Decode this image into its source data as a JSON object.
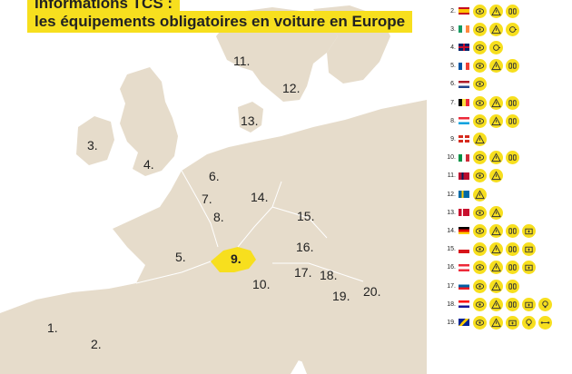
{
  "title": {
    "line1": "Informations TCS :",
    "line2": "les équipements obligatoires en voiture en Europe"
  },
  "map_labels": [
    {
      "id": "1",
      "text": "1."
    },
    {
      "id": "2",
      "text": "2."
    },
    {
      "id": "3",
      "text": "3."
    },
    {
      "id": "4",
      "text": "4."
    },
    {
      "id": "5",
      "text": "5."
    },
    {
      "id": "6",
      "text": "6."
    },
    {
      "id": "7",
      "text": "7."
    },
    {
      "id": "8",
      "text": "8."
    },
    {
      "id": "9",
      "text": "9."
    },
    {
      "id": "10",
      "text": "10."
    },
    {
      "id": "11",
      "text": "11."
    },
    {
      "id": "12",
      "text": "12."
    },
    {
      "id": "13",
      "text": "13."
    },
    {
      "id": "14",
      "text": "14."
    },
    {
      "id": "15",
      "text": "15."
    },
    {
      "id": "16",
      "text": "16."
    },
    {
      "id": "17",
      "text": "17."
    },
    {
      "id": "18",
      "text": "18."
    },
    {
      "id": "19",
      "text": "19."
    },
    {
      "id": "20",
      "text": "20."
    }
  ],
  "colors": {
    "highlight": "#f7df1e",
    "land": "#e6dccb",
    "water": "#ffffff"
  },
  "legend": [
    {
      "num": "2.",
      "flag": "spain",
      "icons": [
        "vest-icon",
        "triangle-icon",
        "vests-icon"
      ]
    },
    {
      "num": "3.",
      "flag": "ireland",
      "icons": [
        "vest-icon",
        "triangle-icon",
        "lamp-icon"
      ]
    },
    {
      "num": "4.",
      "flag": "uk",
      "icons": [
        "vest-icon",
        "lamp-icon"
      ]
    },
    {
      "num": "5.",
      "flag": "france",
      "icons": [
        "vest-icon",
        "triangle-icon",
        "vests-icon"
      ]
    },
    {
      "num": "6.",
      "flag": "netherlands",
      "icons": [
        "vest-icon"
      ]
    },
    {
      "num": "7.",
      "flag": "belgium",
      "icons": [
        "vest-icon",
        "triangle-icon",
        "vests-icon"
      ]
    },
    {
      "num": "8.",
      "flag": "luxembourg",
      "icons": [
        "vest-icon",
        "triangle-icon",
        "vests-icon"
      ]
    },
    {
      "num": "9.",
      "flag": "switzerland",
      "icons": [
        "triangle-icon"
      ]
    },
    {
      "num": "10.",
      "flag": "italy",
      "icons": [
        "vest-icon",
        "triangle-icon",
        "vests-icon"
      ]
    },
    {
      "num": "11.",
      "flag": "norway",
      "icons": [
        "vest-icon",
        "triangle-icon"
      ]
    },
    {
      "num": "12.",
      "flag": "sweden",
      "icons": [
        "triangle-icon"
      ]
    },
    {
      "num": "13.",
      "flag": "denmark",
      "icons": [
        "vest-icon",
        "triangle-icon"
      ]
    },
    {
      "num": "14.",
      "flag": "germany",
      "icons": [
        "vest-icon",
        "triangle-icon",
        "vests-icon",
        "firstaid-icon"
      ]
    },
    {
      "num": "15.",
      "flag": "czechia",
      "icons": [
        "vest-icon",
        "triangle-icon",
        "vests-icon",
        "firstaid-icon"
      ]
    },
    {
      "num": "16.",
      "flag": "austria",
      "icons": [
        "vest-icon",
        "triangle-icon",
        "vests-icon",
        "firstaid-icon"
      ]
    },
    {
      "num": "17.",
      "flag": "slovenia",
      "icons": [
        "vest-icon",
        "triangle-icon",
        "vests-icon"
      ]
    },
    {
      "num": "18.",
      "flag": "croatia",
      "icons": [
        "vest-icon",
        "triangle-icon",
        "vests-icon",
        "firstaid-icon",
        "bulb-icon"
      ]
    },
    {
      "num": "19.",
      "flag": "bosnia",
      "icons": [
        "vest-icon",
        "triangle-icon",
        "firstaid-icon",
        "bulb-icon",
        "tow-icon"
      ]
    }
  ]
}
